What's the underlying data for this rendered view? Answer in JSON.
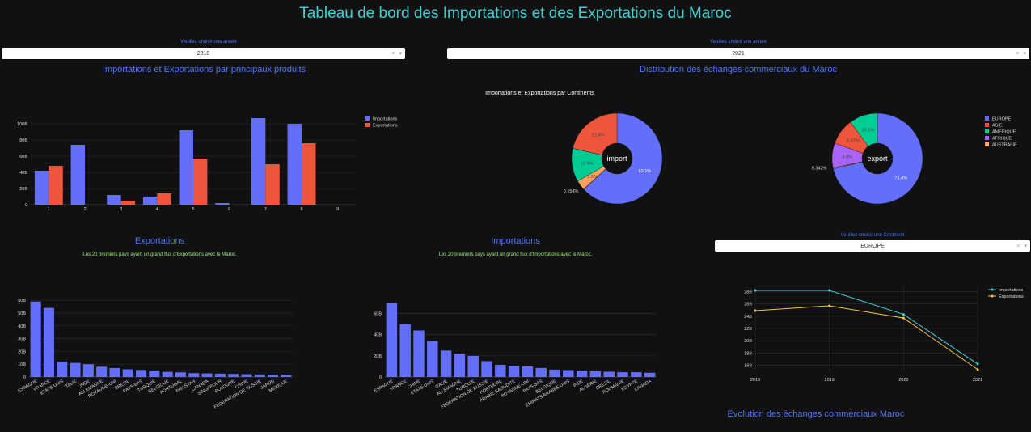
{
  "page": {
    "title": "Tableau de bord des Importations et des Exportations du Maroc"
  },
  "year_selector_left": {
    "label": "Veuillez choisir une année",
    "value": "2018",
    "clear": "×",
    "caret": "▾"
  },
  "year_selector_right": {
    "label": "Veuillez choisir une année",
    "value": "2021",
    "clear": "×",
    "caret": "▾"
  },
  "continent_selector": {
    "label": "Veuillez choisir une Continent",
    "value": "EUROPE",
    "clear": "×",
    "caret": "▾"
  },
  "sections": {
    "products": "Importations et Exportations par principaux produits",
    "distribution": "Distribution des échanges commerciaux du Maroc",
    "exports": "Exportations",
    "imports": "Importations",
    "evolution": "Evolution des échanges commerciaux Maroc"
  },
  "subtitles": {
    "continents": "Importations et Exportations par Continents",
    "exports_top": "Les 20 premiers pays ayant un grand flux d'Exportations avec le Maroc.",
    "imports_top": "Les 20 premiers pays ayant un grand flux d'Importations avec le Maroc."
  },
  "colors": {
    "import": "#636efa",
    "export": "#ef553b",
    "cyan": "#3fd0d4",
    "yellow": "#f7c33d",
    "europe": "#636efa",
    "asie": "#ef553b",
    "amerique": "#00cc96",
    "afrique": "#ab63fa",
    "australie": "#ffa15a"
  },
  "chart_data": [
    {
      "id": "products",
      "type": "bar",
      "categories": [
        "1",
        "2",
        "3",
        "4",
        "5",
        "6",
        "7",
        "8",
        "9"
      ],
      "series": [
        {
          "name": "Importations",
          "values": [
            42,
            74,
            12,
            10,
            92,
            2,
            107,
            100,
            0
          ]
        },
        {
          "name": "Exportations",
          "values": [
            48,
            0,
            5,
            14,
            57,
            0,
            50,
            76,
            0
          ]
        }
      ],
      "yticks": [
        "0",
        "20B",
        "40B",
        "60B",
        "80B",
        "100B"
      ],
      "ylim": [
        0,
        110
      ],
      "legend": "top-right"
    },
    {
      "id": "pie_import",
      "type": "pie",
      "center_label": "import",
      "slices": [
        {
          "name": "EUROPE",
          "value": 63.1,
          "label": "63.1%"
        },
        {
          "name": "AFRIQUE",
          "value": 0.154,
          "label": "0.154%"
        },
        {
          "name": "AUSTRALIE",
          "value": 3.5,
          "label": "3.5%"
        },
        {
          "name": "AMERIQUE",
          "value": 11.9,
          "label": "11.9%"
        },
        {
          "name": "ASIE",
          "value": 21.4,
          "label": "21.4%"
        }
      ]
    },
    {
      "id": "pie_export",
      "type": "pie",
      "center_label": "export",
      "slices": [
        {
          "name": "EUROPE",
          "value": 71.4,
          "label": "71.4%"
        },
        {
          "name": "AUSTRALIE",
          "value": 0.342,
          "label": "0.342%"
        },
        {
          "name": "AFRIQUE",
          "value": 8.8,
          "label": "8.8%"
        },
        {
          "name": "ASIE",
          "value": 9.37,
          "label": "9.37%"
        },
        {
          "name": "AMERIQUE",
          "value": 10.1,
          "label": "10.1%"
        }
      ],
      "legend": [
        "EUROPE",
        "ASIE",
        "AMERIQUE",
        "AFRIQUE",
        "AUSTRALIE"
      ]
    },
    {
      "id": "exports_top",
      "type": "bar",
      "categories": [
        "ESPAGNE",
        "FRANCE",
        "ETATS-UNIS",
        "ITALIE",
        "INDE",
        "ALLEMAGNE",
        "ROYAUME-UNI",
        "BRESIL",
        "PAYS-BAS",
        "TURQUIE",
        "BELGIQUE",
        "PORTUGAL",
        "PAKISTAN",
        "CANADA",
        "SINGAPOUR",
        "POLOGNE",
        "CHINE",
        "FEDERATION DE RUSSIE",
        "JAPON",
        "MEXIQUE"
      ],
      "values": [
        59,
        54,
        12,
        11,
        10,
        8,
        7,
        6,
        5.5,
        5,
        4,
        3.6,
        3,
        2.8,
        2.6,
        2.4,
        2.2,
        2,
        1.8,
        1.6
      ],
      "yticks": [
        "0",
        "10B",
        "20B",
        "30B",
        "40B",
        "50B",
        "60B"
      ],
      "ylim": [
        0,
        62
      ]
    },
    {
      "id": "imports_top",
      "type": "bar",
      "categories": [
        "ESPAGNE",
        "FRANCE",
        "CHINE",
        "ETATS-UNIS",
        "ITALIE",
        "ALLEMAGNE",
        "TURQUIE",
        "FEDERATION DE RUSSIE",
        "PORTUGAL",
        "ARABIE SAOUDITE",
        "ROYAUME-UNI",
        "PAYS-BAS",
        "BELGIQUE",
        "EMIRATS ARABES UNIS",
        "INDE",
        "ALGERIE",
        "BRESIL",
        "ROUMANIE",
        "EGYPTE",
        "CANADA"
      ],
      "values": [
        70,
        50,
        44,
        34,
        25,
        22,
        20,
        15,
        11.5,
        10.5,
        10,
        8.5,
        7,
        6.5,
        6,
        5.5,
        5,
        4.5,
        4.5,
        4
      ],
      "yticks": [
        "0",
        "20B",
        "40B",
        "60B"
      ],
      "ylim": [
        0,
        75
      ]
    },
    {
      "id": "evolution",
      "type": "line",
      "x": [
        "2018",
        "2019",
        "2020",
        "2021"
      ],
      "series": [
        {
          "name": "Importations",
          "values": [
            28.2,
            28.2,
            24.3,
            16.2
          ]
        },
        {
          "name": "Exportations",
          "values": [
            24.9,
            25.7,
            23.7,
            15.3
          ]
        }
      ],
      "yticks": [
        "16B",
        "18B",
        "20B",
        "22B",
        "24B",
        "26B",
        "28B"
      ],
      "ylim": [
        15,
        29
      ],
      "legend": "top-right"
    }
  ]
}
